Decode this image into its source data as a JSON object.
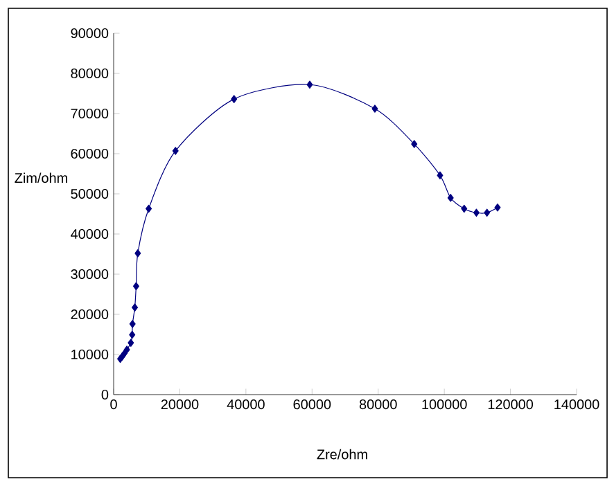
{
  "chart_data": {
    "type": "line",
    "xlabel": "Zre/ohm",
    "ylabel": "Zim/ohm",
    "x": [
      2000,
      2600,
      3300,
      4000,
      5200,
      5600,
      5700,
      6400,
      6800,
      7300,
      10600,
      18700,
      36400,
      59300,
      79000,
      90900,
      98700,
      101900,
      106000,
      109700,
      112900,
      116100
    ],
    "series": [
      {
        "color": "#000080",
        "values": [
          8900,
          9500,
          10300,
          11200,
          12900,
          14900,
          17600,
          21700,
          27000,
          35200,
          46300,
          60700,
          73600,
          77200,
          71200,
          62400,
          54600,
          49000,
          46300,
          45300,
          45300,
          46600
        ]
      }
    ],
    "xlim": [
      0,
      140000
    ],
    "xticks": [
      0,
      20000,
      40000,
      60000,
      80000,
      100000,
      120000,
      140000
    ],
    "ylim": [
      0,
      90000
    ],
    "yticks": [
      0,
      10000,
      20000,
      30000,
      40000,
      50000,
      60000,
      70000,
      80000,
      90000
    ],
    "marker": "diamond",
    "line_style": "solid"
  }
}
